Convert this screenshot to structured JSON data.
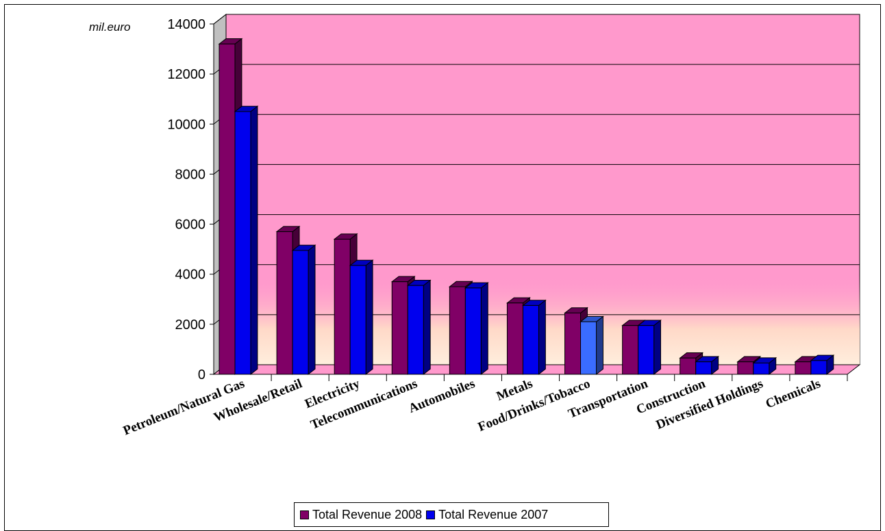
{
  "chart_data": {
    "type": "bar",
    "unit_label": "mil.euro",
    "categories": [
      "Petroleum/Natural Gas",
      "Wholesale/Retail",
      "Electricity",
      "Telecommunications",
      "Automobiles",
      "Metals",
      "Food/Drinks/Tobacco",
      "Transportation",
      "Construction",
      "Diversified Holdings",
      "Chemicals"
    ],
    "series": [
      {
        "name": "Total Revenue 2008",
        "color": "#800066",
        "values": [
          13200,
          5700,
          5400,
          3700,
          3500,
          2850,
          2450,
          1950,
          650,
          500,
          500
        ]
      },
      {
        "name": "Total Revenue 2007",
        "color": "#0000ee",
        "values": [
          10500,
          4950,
          4350,
          3550,
          3450,
          2750,
          2100,
          1950,
          500,
          450,
          550
        ]
      }
    ],
    "highlight_color": "#3a6cff",
    "ylim": [
      0,
      14000
    ],
    "yticks": [
      0,
      2000,
      4000,
      6000,
      8000,
      10000,
      12000,
      14000
    ],
    "grid": true,
    "legend_position": "bottom",
    "plot_background": "#ff99cc"
  }
}
